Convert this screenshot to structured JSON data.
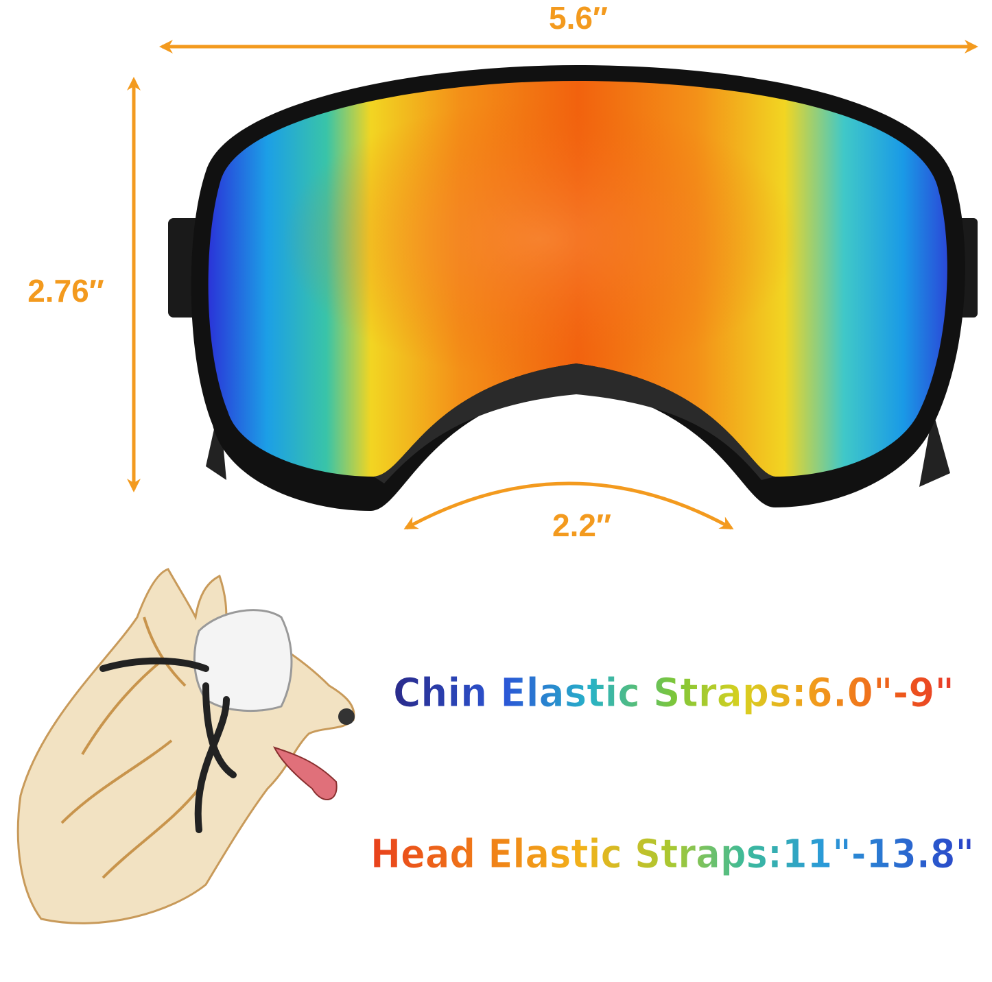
{
  "dimensions": {
    "width_label": "5.6″",
    "height_label": "2.76″",
    "nose_label": "2.2″"
  },
  "straps": {
    "chin": "Chin Elastic Straps:6.0\"-9\"",
    "head": "Head Elastic Straps:11\"-13.8\""
  },
  "colors": {
    "dimension_orange": "#f39a1e",
    "frame_black": "#111111"
  },
  "icons": {
    "goggles": "dog-goggles-illustration",
    "dog": "husky-wearing-goggles-sketch"
  }
}
